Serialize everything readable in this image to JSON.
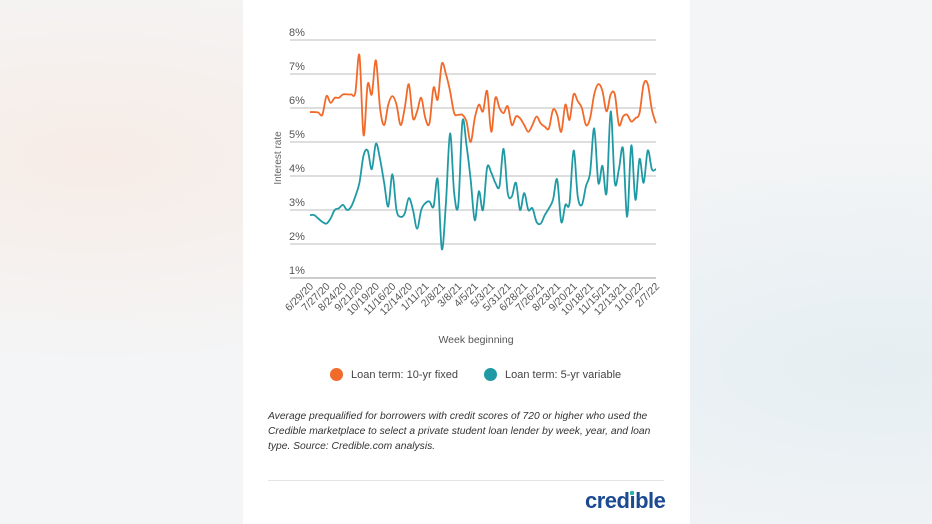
{
  "chart_data": {
    "type": "line",
    "ylabel": "Interest rate",
    "xlabel": "Week beginning",
    "ylim": [
      1,
      8
    ],
    "yticks": [
      "1%",
      "2%",
      "3%",
      "4%",
      "5%",
      "6%",
      "7%",
      "8%"
    ],
    "grid": true,
    "legend_placement": "bottom",
    "xtick_labels": [
      "6/29/20",
      "7/27/20",
      "8/24/20",
      "9/21/20",
      "10/19/20",
      "11/16/20",
      "12/14/20",
      "1/11/21",
      "2/8/21",
      "3/8/21",
      "4/5/21",
      "5/3/21",
      "5/31/21",
      "6/28/21",
      "7/26/21",
      "8/23/21",
      "9/20/21",
      "10/18/21",
      "11/15/21",
      "12/13/21",
      "1/10/22",
      "2/7/22"
    ],
    "x": [
      "6/29/20",
      "7/6/20",
      "7/13/20",
      "7/20/20",
      "7/27/20",
      "8/3/20",
      "8/10/20",
      "8/17/20",
      "8/24/20",
      "8/31/20",
      "9/7/20",
      "9/14/20",
      "9/21/20",
      "9/28/20",
      "10/5/20",
      "10/12/20",
      "10/19/20",
      "10/26/20",
      "11/2/20",
      "11/9/20",
      "11/16/20",
      "11/23/20",
      "11/30/20",
      "12/7/20",
      "12/14/20",
      "12/21/20",
      "12/28/20",
      "1/4/21",
      "1/11/21",
      "1/18/21",
      "1/25/21",
      "2/1/21",
      "2/8/21",
      "2/15/21",
      "2/22/21",
      "3/1/21",
      "3/8/21",
      "3/15/21",
      "3/22/21",
      "3/29/21",
      "4/5/21",
      "4/12/21",
      "4/19/21",
      "4/26/21",
      "5/3/21",
      "5/10/21",
      "5/17/21",
      "5/24/21",
      "5/31/21",
      "6/7/21",
      "6/14/21",
      "6/21/21",
      "6/28/21",
      "7/5/21",
      "7/12/21",
      "7/19/21",
      "7/26/21",
      "8/2/21",
      "8/9/21",
      "8/16/21",
      "8/23/21",
      "8/30/21",
      "9/6/21",
      "9/13/21",
      "9/20/21",
      "9/27/21",
      "10/4/21",
      "10/11/21",
      "10/18/21",
      "10/25/21",
      "11/1/21",
      "11/8/21",
      "11/15/21",
      "11/22/21",
      "11/29/21",
      "12/6/21",
      "12/13/21",
      "12/20/21",
      "12/27/21",
      "1/3/22",
      "1/10/22",
      "1/17/22",
      "1/24/22",
      "1/31/22",
      "2/7/22"
    ],
    "series": [
      {
        "name": "Loan term: 10-yr fixed",
        "color": "#f26a2a",
        "values": [
          5.88,
          5.88,
          5.87,
          5.8,
          6.35,
          6.15,
          6.3,
          6.3,
          6.4,
          6.4,
          6.4,
          6.45,
          7.55,
          5.2,
          6.7,
          6.4,
          7.4,
          6.0,
          5.5,
          6.1,
          6.35,
          6.1,
          5.5,
          6.0,
          6.7,
          5.7,
          5.9,
          6.3,
          5.7,
          5.55,
          6.6,
          6.25,
          7.3,
          7.0,
          6.5,
          5.85,
          5.8,
          5.8,
          5.6,
          5.0,
          5.7,
          6.1,
          5.9,
          6.5,
          5.3,
          6.3,
          6.0,
          5.85,
          6.05,
          5.5,
          5.75,
          5.7,
          5.5,
          5.3,
          5.5,
          5.75,
          5.55,
          5.45,
          5.4,
          5.95,
          5.8,
          5.3,
          6.1,
          5.65,
          6.4,
          6.2,
          6.0,
          5.5,
          5.7,
          6.4,
          6.7,
          6.5,
          5.9,
          6.4,
          6.4,
          5.5,
          5.75,
          5.8,
          5.6,
          5.7,
          5.85,
          6.7,
          6.7,
          5.95,
          5.55
        ]
      },
      {
        "name": "Loan term: 5-yr variable",
        "color": "#1f9aa5",
        "values": [
          2.85,
          2.85,
          2.75,
          2.65,
          2.6,
          2.75,
          3.0,
          3.05,
          3.15,
          3.0,
          3.1,
          3.4,
          3.8,
          4.6,
          4.75,
          4.2,
          4.95,
          4.5,
          3.8,
          3.1,
          4.05,
          3.0,
          2.8,
          2.9,
          3.35,
          3.0,
          2.45,
          3.0,
          3.2,
          3.25,
          3.1,
          3.9,
          1.85,
          3.2,
          5.25,
          3.5,
          3.15,
          5.6,
          4.9,
          3.9,
          2.7,
          3.55,
          3.0,
          4.25,
          4.1,
          3.8,
          3.7,
          4.8,
          3.5,
          3.4,
          3.8,
          3.0,
          3.5,
          3.0,
          3.05,
          2.65,
          2.6,
          2.85,
          3.05,
          3.3,
          3.9,
          2.65,
          3.15,
          3.2,
          4.75,
          3.4,
          3.15,
          3.7,
          4.1,
          5.4,
          3.8,
          4.3,
          3.5,
          5.9,
          3.8,
          4.2,
          4.8,
          2.8,
          4.9,
          3.3,
          4.5,
          3.8,
          4.75,
          4.2,
          4.2
        ]
      }
    ]
  },
  "caption": "Average prequalified for borrowers with credit scores of 720 or higher who used the Credible marketplace to select a private student loan lender by week, year, and loan type. Source: Credible.com analysis.",
  "logo": "credible"
}
